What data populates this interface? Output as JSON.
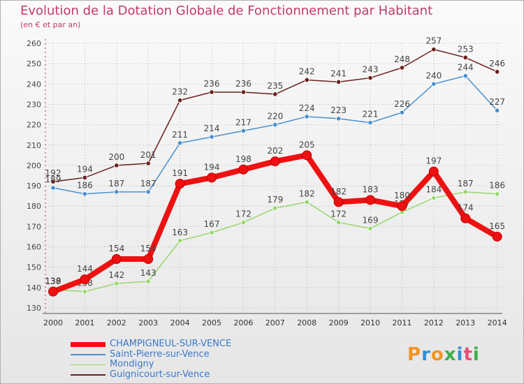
{
  "title": "Evolution de la Dotation Globale de Fonctionnement par Habitant",
  "subtitle": "(en € et par an)",
  "logo_text": "Proxiti",
  "chart_data": {
    "type": "line",
    "title": "Evolution de la Dotation Globale de Fonctionnement par Habitant",
    "ylabel": "(en € et par an)",
    "xlabel": "",
    "x": [
      "2000",
      "2001",
      "2002",
      "2003",
      "2004",
      "2005",
      "2006",
      "2007",
      "2008",
      "2009",
      "2010",
      "2011",
      "2012",
      "2013",
      "2014"
    ],
    "yticks": [
      130,
      140,
      150,
      160,
      170,
      180,
      190,
      200,
      210,
      220,
      230,
      240,
      250,
      260
    ],
    "ylim": [
      130,
      260
    ],
    "grid": true,
    "legend_position": "bottom-left",
    "series": [
      {
        "name": "Guignicourt-sur-Vence",
        "color": "#6b1e1e",
        "values": [
          192,
          194,
          200,
          201,
          232,
          236,
          236,
          235,
          242,
          241,
          243,
          248,
          257,
          253,
          246
        ]
      },
      {
        "name": "Saint-Pierre-sur-Vence",
        "color": "#4a8fcc",
        "values": [
          189,
          186,
          187,
          187,
          211,
          214,
          217,
          220,
          224,
          223,
          221,
          226,
          240,
          244,
          227
        ]
      },
      {
        "name": "Mondigny",
        "color": "#99d66b",
        "values": [
          139,
          138,
          142,
          143,
          163,
          167,
          172,
          179,
          182,
          172,
          169,
          177,
          184,
          187,
          186
        ]
      },
      {
        "name": "CHAMPIGNEUL-SUR-VENCE",
        "color": "#ee1111",
        "values": [
          138,
          144,
          154,
          154,
          191,
          194,
          198,
          202,
          205,
          182,
          183,
          180,
          197,
          174,
          165
        ]
      }
    ]
  },
  "legend": [
    {
      "name": "CHAMPIGNEUL-SUR-VENCE",
      "color": "#ee1111",
      "thickness": 7
    },
    {
      "name": "Saint-Pierre-sur-Vence",
      "color": "#4a8fcc",
      "thickness": 1.5
    },
    {
      "name": "Mondigny",
      "color": "#99d66b",
      "thickness": 1.5
    },
    {
      "name": "Guignicourt-sur-Vence",
      "color": "#6b1e1e",
      "thickness": 1.5
    }
  ]
}
